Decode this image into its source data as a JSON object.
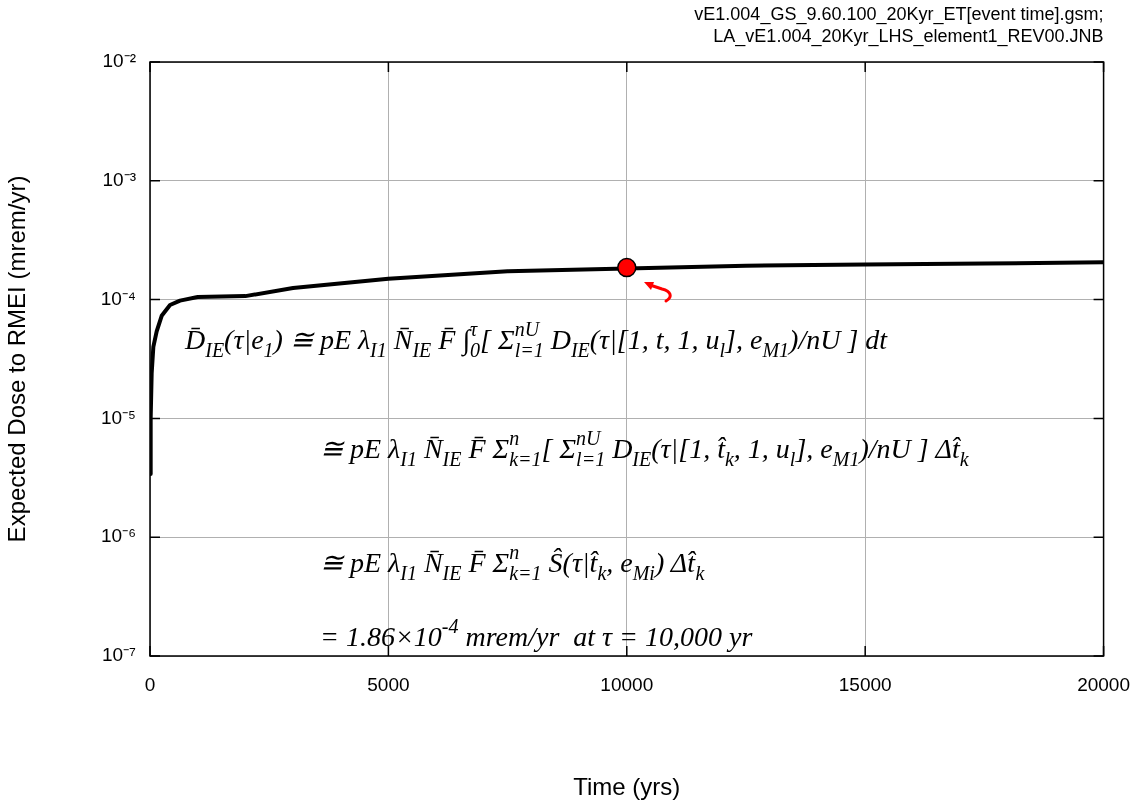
{
  "chart_data": {
    "type": "line",
    "xlabel": "Time (yrs)",
    "ylabel": "Expected Dose to RMEI (mrem/yr)",
    "log": "y",
    "grid": true,
    "legend": false,
    "xlim": [
      0,
      20000
    ],
    "xticks": [
      0,
      5000,
      10000,
      15000,
      20000
    ],
    "ylim": [
      1e-07,
      0.01
    ],
    "yticks": [
      {
        "value": 1e-07,
        "label": "10⁻⁷"
      },
      {
        "value": 1e-06,
        "label": "10⁻⁶"
      },
      {
        "value": 1e-05,
        "label": "10⁻⁵"
      },
      {
        "value": 0.0001,
        "label": "10⁻⁴"
      },
      {
        "value": 0.001,
        "label": "10⁻³"
      },
      {
        "value": 0.01,
        "label": "10⁻²"
      }
    ],
    "series": [
      {
        "color": "#000000",
        "marker": "none",
        "x": [
          1,
          14,
          35,
          70,
          140,
          245,
          420,
          630,
          1000,
          2000,
          3000,
          5000,
          7500,
          12500,
          15000,
          17500,
          20000
        ],
        "values": [
          3.4e-06,
          1e-05,
          2.4e-05,
          4e-05,
          5.4e-05,
          7.3e-05,
          9e-05,
          9.8e-05,
          0.000105,
          0.000107,
          0.000125,
          0.00015,
          0.000173,
          0.000193,
          0.000197,
          0.000201,
          0.000206
        ]
      },
      {
        "type": "scatter",
        "color": "#ff0000",
        "marker": "circle",
        "x": [
          10000
        ],
        "values": [
          0.000186
        ]
      }
    ],
    "annotations": [
      "vE1.004_GS_9.60.100_20Kyr_ET[event time].gsm;",
      "LA_vE1.004_20Kyr_LHS_element1_REV00.JNB",
      "D̄$_{IE}$(τ|e$_{1}$) ≅ pE λ$_{I1}$ N̄$_{IE}$ F̄ ∫$_{0}$$^{τ}$[ Σ$_{l=1}$$^{nU}$ D$_{IE}$(τ|[1, t, 1, u$_{l}$], e$_{M1}$)/nU ] dt",
      "≅ pE λ$_{I1}$ N̄$_{IE}$ F̄ Σ$_{k=1}$$^{n}$[ Σ$_{l=1}$$^{nU}$ D$_{IE}$(τ|[1, t̂$_{k}$, 1, u$_{l}$], e$_{M1}$)/nU ] Δt̂$_{k}$",
      "≅ pE λ$_{I1}$ N̄$_{IE}$ F̄ Σ$_{k=1}$$^{n}$ Ŝ(τ|t̂$_{k}$, e$_{Mi}$) Δt̂$_{k}$",
      "= 1.86×10$^{-4}$ mrem/yr  at τ = 10,000 yr"
    ]
  }
}
